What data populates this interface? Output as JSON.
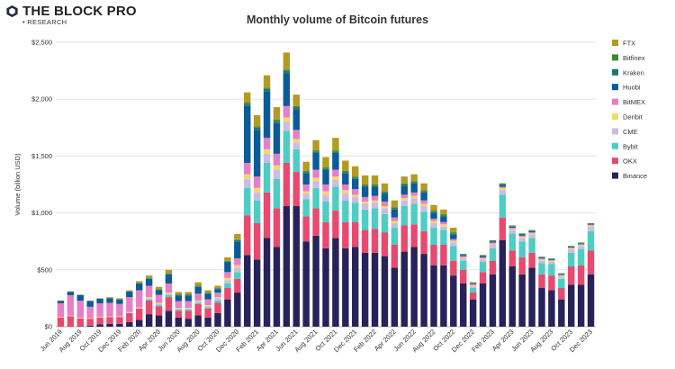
{
  "brand": {
    "name": "THE BLOCK PRO",
    "sub": "• RESEARCH",
    "logo_color": "#1f2a44"
  },
  "chart_data": {
    "type": "bar",
    "stacked": true,
    "title": "Monthly volume of Bitcoin futures",
    "xlabel": "",
    "ylabel": "Volume (billion USD)",
    "ylim": [
      0,
      2500
    ],
    "yticks": [
      0,
      500,
      1000,
      1500,
      2000,
      2500
    ],
    "ytick_labels": [
      "$0",
      "$500",
      "$1,000",
      "$1,500",
      "$2,000",
      "$2,500"
    ],
    "grid": true,
    "legend_position": "right",
    "categories": [
      "Jun 2019",
      "Jul 2019",
      "Aug 2019",
      "Sep 2019",
      "Oct 2019",
      "Nov 2019",
      "Dec 2019",
      "Jan 2020",
      "Feb 2020",
      "Mar 2020",
      "Apr 2020",
      "May 2020",
      "Jun 2020",
      "Jul 2020",
      "Aug 2020",
      "Sep 2020",
      "Oct 2020",
      "Nov 2020",
      "Dec 2020",
      "Jan 2021",
      "Feb 2021",
      "Mar 2021",
      "Apr 2021",
      "May 2021",
      "Jun 2021",
      "Jul 2021",
      "Aug 2021",
      "Sep 2021",
      "Oct 2021",
      "Nov 2021",
      "Dec 2021",
      "Jan 2022",
      "Feb 2022",
      "Mar 2022",
      "Apr 2022",
      "May 2022",
      "Jun 2022",
      "Jul 2022",
      "Aug 2022",
      "Sep 2022",
      "Oct 2022",
      "Nov 2022",
      "Dec 2022",
      "Jan 2023",
      "Feb 2023",
      "Mar 2023",
      "Apr 2023",
      "May 2023",
      "Jun 2023",
      "Jul 2023",
      "Aug 2023",
      "Sep 2023",
      "Oct 2023",
      "Nov 2023",
      "Dec 2023"
    ],
    "series": [
      {
        "name": "Binance",
        "color": "#27235a",
        "values": [
          1,
          2,
          3,
          10,
          20,
          25,
          25,
          40,
          60,
          110,
          100,
          140,
          80,
          70,
          100,
          80,
          120,
          240,
          300,
          630,
          590,
          780,
          700,
          1060,
          1060,
          750,
          800,
          690,
          780,
          690,
          700,
          650,
          650,
          620,
          520,
          660,
          700,
          640,
          540,
          540,
          450,
          380,
          240,
          380,
          460,
          760,
          530,
          460,
          520,
          340,
          320,
          240,
          370,
          370,
          460
        ]
      },
      {
        "name": "OKX",
        "color": "#e84a6f",
        "values": [
          80,
          90,
          70,
          60,
          60,
          60,
          60,
          80,
          100,
          120,
          80,
          120,
          60,
          70,
          100,
          80,
          90,
          100,
          120,
          350,
          320,
          400,
          340,
          380,
          300,
          220,
          240,
          230,
          240,
          230,
          220,
          200,
          210,
          210,
          200,
          230,
          200,
          200,
          180,
          180,
          130,
          120,
          60,
          100,
          120,
          200,
          140,
          150,
          130,
          120,
          130,
          100,
          160,
          170,
          210
        ]
      },
      {
        "name": "Bybit",
        "color": "#4ecdc4",
        "values": [
          0,
          0,
          0,
          0,
          0,
          0,
          0,
          0,
          0,
          10,
          10,
          20,
          10,
          10,
          10,
          10,
          20,
          40,
          60,
          240,
          200,
          260,
          260,
          280,
          200,
          150,
          180,
          180,
          210,
          190,
          170,
          180,
          180,
          160,
          150,
          170,
          180,
          170,
          150,
          130,
          130,
          80,
          40,
          90,
          110,
          200,
          150,
          140,
          130,
          100,
          100,
          80,
          120,
          140,
          170
        ]
      },
      {
        "name": "CME",
        "color": "#c9bde6",
        "values": [
          0,
          0,
          0,
          0,
          0,
          0,
          0,
          5,
          5,
          10,
          10,
          10,
          10,
          10,
          10,
          10,
          20,
          30,
          40,
          80,
          70,
          80,
          80,
          80,
          60,
          50,
          60,
          60,
          60,
          60,
          50,
          50,
          50,
          50,
          40,
          50,
          50,
          50,
          40,
          30,
          30,
          20,
          15,
          20,
          30,
          40,
          30,
          30,
          30,
          20,
          20,
          20,
          30,
          30,
          40
        ]
      },
      {
        "name": "Deribit",
        "color": "#f2d96b",
        "values": [
          5,
          5,
          5,
          5,
          5,
          5,
          5,
          5,
          5,
          10,
          10,
          10,
          5,
          5,
          10,
          10,
          10,
          20,
          20,
          40,
          40,
          40,
          40,
          40,
          30,
          20,
          30,
          30,
          30,
          30,
          20,
          20,
          20,
          20,
          20,
          20,
          20,
          20,
          20,
          20,
          15,
          10,
          10,
          10,
          10,
          20,
          10,
          10,
          10,
          10,
          10,
          10,
          10,
          10,
          10
        ]
      },
      {
        "name": "BitMEX",
        "color": "#e67fc8",
        "values": [
          120,
          180,
          150,
          100,
          120,
          120,
          110,
          130,
          150,
          100,
          70,
          80,
          60,
          60,
          60,
          50,
          40,
          50,
          60,
          100,
          100,
          100,
          100,
          100,
          80,
          60,
          70,
          60,
          60,
          50,
          50,
          40,
          40,
          40,
          30,
          30,
          30,
          30,
          20,
          20,
          15,
          10,
          10,
          10,
          10,
          10,
          10,
          10,
          10,
          10,
          5,
          5,
          5,
          5,
          5
        ]
      },
      {
        "name": "Huobi",
        "color": "#0a5c98",
        "values": [
          20,
          30,
          50,
          50,
          40,
          40,
          40,
          50,
          60,
          60,
          40,
          80,
          50,
          50,
          60,
          50,
          30,
          90,
          150,
          500,
          410,
          410,
          270,
          290,
          180,
          100,
          150,
          130,
          150,
          100,
          90,
          90,
          80,
          70,
          70,
          80,
          80,
          70,
          50,
          50,
          40,
          10,
          5,
          10,
          10,
          15,
          10,
          10,
          10,
          5,
          5,
          5,
          5,
          5,
          5
        ]
      },
      {
        "name": "Kraken",
        "color": "#1e7a6b",
        "values": [
          0,
          0,
          0,
          0,
          0,
          0,
          0,
          0,
          0,
          5,
          5,
          5,
          5,
          5,
          5,
          5,
          5,
          5,
          10,
          20,
          20,
          20,
          20,
          20,
          20,
          10,
          10,
          10,
          10,
          10,
          10,
          10,
          10,
          10,
          10,
          10,
          10,
          10,
          10,
          10,
          10,
          5,
          5,
          5,
          5,
          10,
          5,
          5,
          5,
          5,
          5,
          5,
          5,
          5,
          5
        ]
      },
      {
        "name": "Bitfinex",
        "color": "#3f8a2c",
        "values": [
          0,
          0,
          0,
          0,
          0,
          0,
          0,
          0,
          0,
          5,
          5,
          5,
          5,
          5,
          5,
          5,
          5,
          5,
          5,
          10,
          10,
          10,
          10,
          10,
          10,
          10,
          10,
          10,
          10,
          10,
          10,
          10,
          10,
          10,
          10,
          10,
          10,
          10,
          10,
          10,
          10,
          5,
          5,
          5,
          5,
          5,
          5,
          5,
          5,
          5,
          5,
          5,
          5,
          5,
          5
        ]
      },
      {
        "name": "FTX",
        "color": "#b39b22",
        "values": [
          5,
          5,
          5,
          5,
          5,
          10,
          10,
          10,
          20,
          20,
          20,
          30,
          20,
          20,
          30,
          20,
          20,
          30,
          50,
          90,
          100,
          110,
          110,
          150,
          100,
          80,
          90,
          90,
          110,
          90,
          90,
          80,
          80,
          70,
          60,
          60,
          60,
          60,
          50,
          40,
          40,
          0,
          0,
          0,
          0,
          0,
          0,
          0,
          0,
          0,
          0,
          0,
          0,
          0,
          0
        ]
      }
    ],
    "legend_order": [
      "FTX",
      "Bitfinex",
      "Kraken",
      "Huobi",
      "BitMEX",
      "Deribit",
      "CME",
      "Bybit",
      "OKX",
      "Binance"
    ]
  }
}
